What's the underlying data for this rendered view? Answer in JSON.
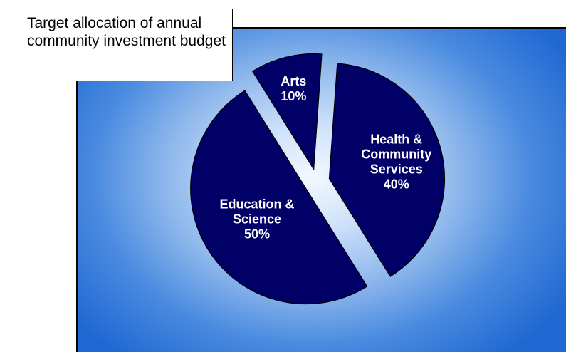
{
  "chart_data": {
    "type": "pie",
    "title": "Target allocation of annual community investment budget",
    "categories": [
      "Health & Community Services",
      "Education & Science",
      "Arts"
    ],
    "values": [
      40,
      50,
      10
    ],
    "value_labels": [
      "40%",
      "50%",
      "10%"
    ],
    "label_lines": [
      [
        "Health &",
        "Community",
        "Services",
        "40%"
      ],
      [
        "Education &",
        "Science",
        "50%"
      ],
      [
        "Arts",
        "10%"
      ]
    ],
    "exploded": true,
    "legend": "none",
    "colors": {
      "slice_fill": "#000066",
      "background_outer": "#1f68d2",
      "background_center": "#f3f8ff"
    }
  }
}
